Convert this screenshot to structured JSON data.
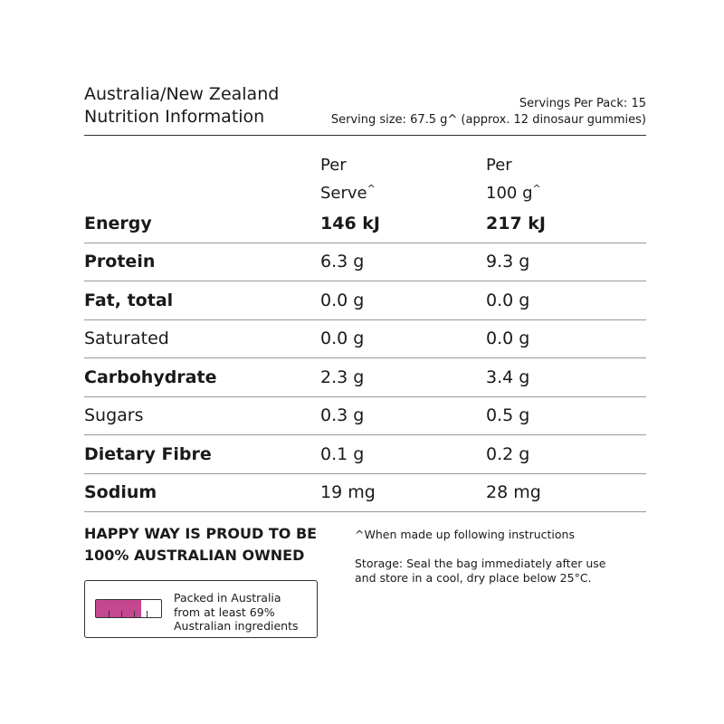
{
  "header": {
    "title_line1": "Australia/New Zealand",
    "title_line2": "Nutrition Information",
    "servings_per_pack": "Servings Per Pack: 15",
    "serving_size": "Serving size: 67.5 g^ (approx. 12 dinosaur gummies)"
  },
  "columns": {
    "per_serve_line1": "Per",
    "per_serve_line2": "Serve",
    "per_serve_mark": "^",
    "per_100_line1": "Per",
    "per_100_line2": "100 g",
    "per_100_mark": "^"
  },
  "rows": [
    {
      "name": "Energy",
      "per_serve": "146 kJ",
      "per_100g": "217 kJ"
    },
    {
      "name": "Protein",
      "per_serve": "6.3 g",
      "per_100g": "9.3 g"
    },
    {
      "name": "Fat, total",
      "per_serve": "0.0 g",
      "per_100g": "0.0 g"
    },
    {
      "name": "Saturated",
      "per_serve": "0.0 g",
      "per_100g": "0.0 g"
    },
    {
      "name": "Carbohydrate",
      "per_serve": "2.3 g",
      "per_100g": "3.4 g"
    },
    {
      "name": "Sugars",
      "per_serve": "0.3 g",
      "per_100g": "0.5 g"
    },
    {
      "name": "Dietary Fibre",
      "per_serve": "0.1 g",
      "per_100g": "0.2 g"
    },
    {
      "name": "Sodium",
      "per_serve": "19 mg",
      "per_100g": "28 mg"
    }
  ],
  "footer": {
    "proud_line1": "HAPPY WAY IS PROUD TO BE",
    "proud_line2": "100% AUSTRALIAN OWNED",
    "origin_line1": "Packed in Australia",
    "origin_line2": "from at least 69%",
    "origin_line3": "Australian ingredients",
    "australian_ingredients_fraction": 0.69,
    "bar_color": "#c4478f",
    "note_caret": "^When made up following instructions",
    "storage_line1": "Storage: Seal the bag immediately after use",
    "storage_line2": "and store in a cool, dry place below 25°C."
  }
}
